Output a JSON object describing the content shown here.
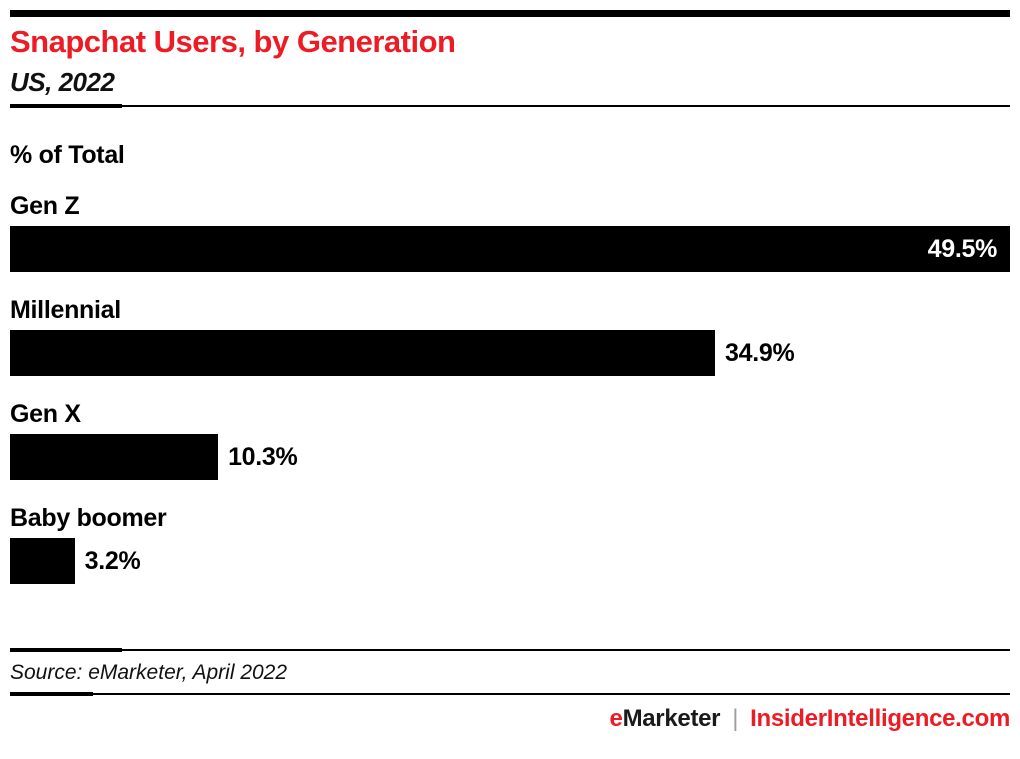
{
  "header": {
    "title": "Snapchat Users, by Generation",
    "subtitle": "US, 2022"
  },
  "chart_data": {
    "type": "bar",
    "orientation": "horizontal",
    "title": "Snapchat Users, by Generation",
    "subtitle": "US, 2022",
    "units_label": "% of Total",
    "categories": [
      "Gen Z",
      "Millennial",
      "Gen X",
      "Baby boomer"
    ],
    "values": [
      49.5,
      34.9,
      10.3,
      3.2
    ],
    "value_labels": [
      "49.5%",
      "34.9%",
      "10.3%",
      "3.2%"
    ],
    "xlim": [
      0,
      49.5
    ],
    "grid": false,
    "legend": false,
    "bar_color": "#000000",
    "max_value_label_position": "inside-end",
    "other_value_label_position": "outside-end"
  },
  "footer": {
    "source": "Source: eMarketer, April 2022",
    "brand_accent": "e",
    "brand_rest": "Marketer",
    "brand_separator": "|",
    "brand_right": "InsiderIntelligence.com"
  },
  "colors": {
    "accent_red": "#ed1c24",
    "bar_black": "#000000",
    "separator_gray": "#9e9e9e",
    "background": "#ffffff"
  }
}
